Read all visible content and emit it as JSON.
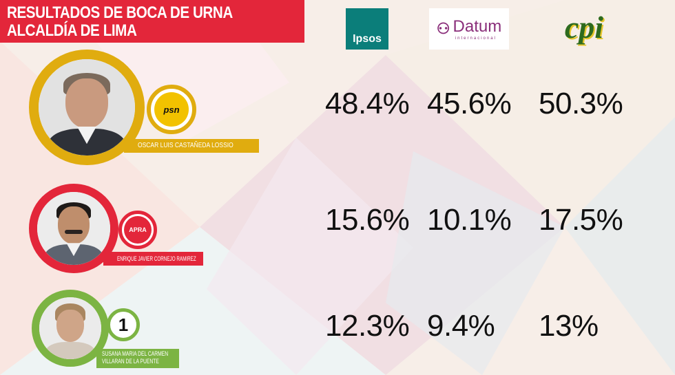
{
  "header": {
    "title_line1": "RESULTADOS DE BOCA DE URNA",
    "title_line2": "ALCALDÍA DE LIMA"
  },
  "pollsters": [
    {
      "label": "Ipsos"
    },
    {
      "label": "Datum",
      "sub": "internacional"
    },
    {
      "label": "cpi"
    }
  ],
  "candidates": [
    {
      "name": "OSCAR LUIS CASTAÑEDA LOSSIO",
      "party_badge": "psn",
      "ring_color": "#e0ac0f",
      "results": [
        "48.4%",
        "45.6%",
        "50.3%"
      ]
    },
    {
      "name": "ENRIQUE JAVIER CORNEJO RAMIREZ",
      "party_badge": "APRA",
      "ring_color": "#e3263a",
      "results": [
        "15.6%",
        "10.1%",
        "17.5%"
      ]
    },
    {
      "name_line1": "SUSANA MARIA DEL CARMEN",
      "name_line2": "VILLARAN DE LA PUENTE",
      "party_badge": "1",
      "ring_color": "#7cb443",
      "results": [
        "12.3%",
        "9.4%",
        "13%"
      ]
    }
  ]
}
